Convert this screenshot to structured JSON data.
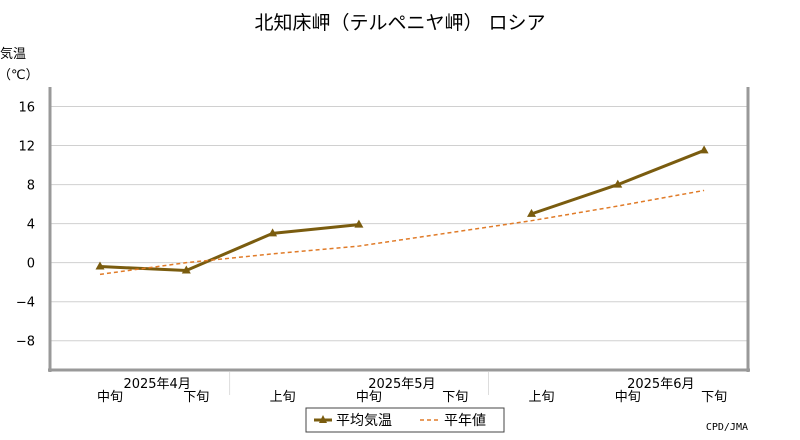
{
  "chart_data": {
    "type": "line",
    "title": "北知床岬（テルペニヤ岬） ロシア",
    "ylabel": "気温",
    "yunit": "（℃）",
    "ylim": [
      -11,
      18
    ],
    "yticks": [
      16,
      12,
      8,
      4,
      0,
      -4,
      -8
    ],
    "ytick_labels": [
      "16",
      "12",
      "8",
      "4",
      "0",
      "−4",
      "−8"
    ],
    "grid": true,
    "categories": [
      "中旬",
      "下旬",
      "上旬",
      "中旬",
      "下旬",
      "上旬",
      "中旬",
      "下旬"
    ],
    "month_labels": [
      {
        "label": "2025年4月",
        "start": 0,
        "end": 1
      },
      {
        "label": "2025年5月",
        "start": 2,
        "end": 4
      },
      {
        "label": "2025年6月",
        "start": 5,
        "end": 7
      }
    ],
    "series": [
      {
        "name": "平均気温",
        "color": "#7a5c0f",
        "style": "solid",
        "marker": "triangle",
        "values": [
          -0.4,
          -0.8,
          3.0,
          3.9,
          null,
          5.0,
          8.0,
          11.5
        ]
      },
      {
        "name": "平年値",
        "color": "#e07b28",
        "style": "dashed",
        "marker": "none",
        "values": [
          -1.2,
          0.0,
          0.9,
          1.7,
          3.0,
          4.3,
          5.8,
          7.4
        ]
      }
    ],
    "legend_position": "bottom-center",
    "credit": "CPD/JMA"
  }
}
